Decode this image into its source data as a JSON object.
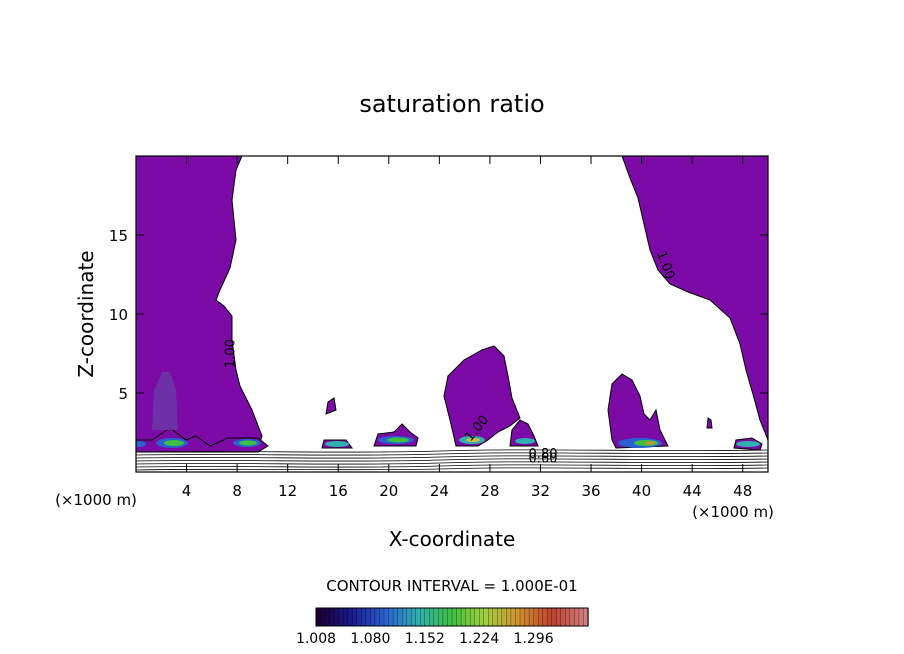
{
  "chart_data": {
    "type": "contour",
    "title": "saturation ratio",
    "xlabel": "X-coordinate",
    "ylabel": "Z-coordinate",
    "x_unit": "(×1000 m)",
    "x_unit_right": "(×1000 m)",
    "xlim": [
      0,
      50
    ],
    "ylim": [
      0,
      20
    ],
    "x_ticks": [
      4,
      8,
      12,
      16,
      20,
      24,
      28,
      32,
      36,
      40,
      44,
      48
    ],
    "y_ticks": [
      5,
      10,
      15
    ],
    "contour_interval_label": "CONTOUR INTERVAL = 1.000E-01",
    "contour_labels": [
      {
        "text": "1.00",
        "x": 7.8,
        "y": 7.5
      },
      {
        "text": "1.00",
        "x": 41.6,
        "y": 13.0
      },
      {
        "text": "1.00",
        "x": 27.2,
        "y": 2.6
      },
      {
        "text": "0.80",
        "x": 32.2,
        "y": 0.9
      },
      {
        "text": "0.60",
        "x": 32.2,
        "y": 0.6
      }
    ],
    "colorbar": {
      "min": 1.008,
      "max": 1.368,
      "tick_labels": [
        "1.008",
        "1.080",
        "1.152",
        "1.224",
        "1.296"
      ],
      "colors": [
        "#1a0030",
        "#1a1a90",
        "#2a60d0",
        "#30b0b0",
        "#40c040",
        "#a0d040",
        "#d09030",
        "#c04030",
        "#d08080"
      ]
    },
    "fill_color_main": "#7b0aa6",
    "regions": [
      {
        "name": "left-column",
        "x_range": [
          0,
          10.5
        ],
        "z_range": [
          1.3,
          20
        ]
      },
      {
        "name": "right-column",
        "x_range": [
          37.5,
          50
        ],
        "z_range": [
          1.3,
          20
        ]
      },
      {
        "name": "cloud-16",
        "x_range": [
          14.8,
          17
        ],
        "z_range": [
          1.5,
          2.1
        ]
      },
      {
        "name": "cloud-20",
        "x_range": [
          18.8,
          22.5
        ],
        "z_range": [
          1.5,
          3.0
        ]
      },
      {
        "name": "cloud-27",
        "x_range": [
          24.8,
          30.2
        ],
        "z_range": [
          1.5,
          8.0
        ]
      },
      {
        "name": "cloud-31",
        "x_range": [
          29.8,
          32.5
        ],
        "z_range": [
          1.5,
          3.5
        ]
      },
      {
        "name": "cloud-15-small",
        "x_range": [
          15.2,
          15.9
        ],
        "z_range": [
          3.6,
          4.6
        ]
      },
      {
        "name": "cloud-45-small",
        "x_range": [
          45.0,
          45.3
        ],
        "z_range": [
          2.8,
          3.4
        ]
      }
    ]
  }
}
